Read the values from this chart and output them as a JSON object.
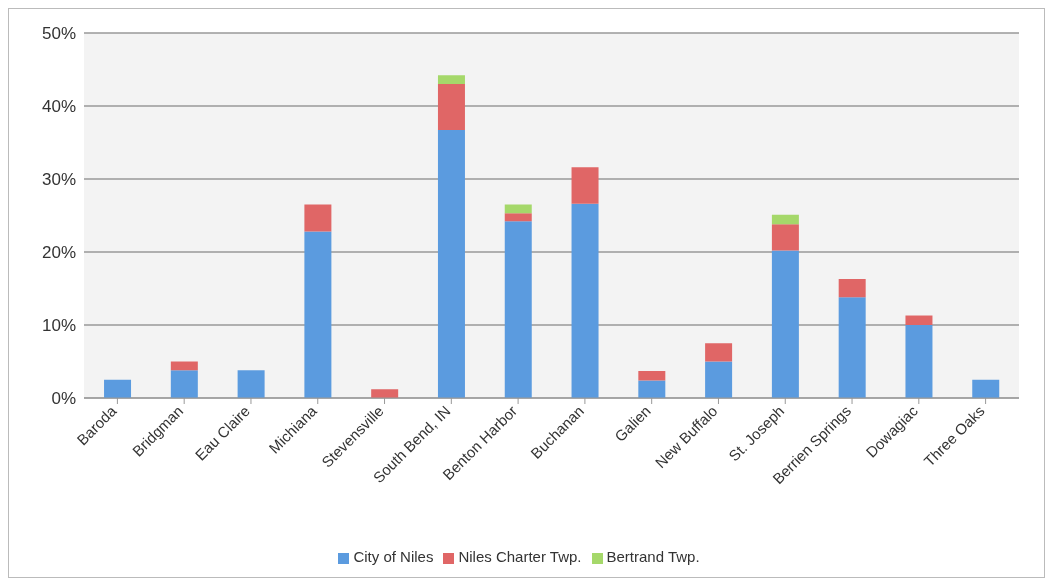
{
  "chart_data": {
    "type": "bar",
    "stacked": true,
    "categories": [
      "Baroda",
      "Bridgman",
      "Eau Claire",
      "Michiana",
      "Stevensville",
      "South Bend, IN",
      "Benton Harbor",
      "Buchanan",
      "Galien",
      "New Buffalo",
      "St. Joseph",
      "Berrien Springs",
      "Dowagiac",
      "Three Oaks"
    ],
    "series": [
      {
        "name": "City of Niles",
        "color": "#5b9bdf",
        "values": [
          2.5,
          3.8,
          3.8,
          22.8,
          0,
          36.7,
          24.2,
          26.6,
          2.4,
          5,
          20.2,
          13.8,
          10,
          2.5
        ]
      },
      {
        "name": "Niles Charter Twp.",
        "color": "#e06666",
        "values": [
          0,
          1.2,
          0,
          3.7,
          1.2,
          6.3,
          1.1,
          5,
          1.3,
          2.5,
          3.6,
          2.5,
          1.3,
          0
        ]
      },
      {
        "name": "Bertrand Twp.",
        "color": "#a5d86a",
        "values": [
          0,
          0,
          0,
          0,
          0,
          1.2,
          1.2,
          0,
          0,
          0,
          1.3,
          0,
          0,
          0
        ]
      }
    ],
    "ylim": [
      0,
      50
    ],
    "yticks": [
      {
        "value": 0,
        "label": "0%"
      },
      {
        "value": 10,
        "label": "10%"
      },
      {
        "value": 20,
        "label": "20%"
      },
      {
        "value": 30,
        "label": "30%"
      },
      {
        "value": 40,
        "label": "40%"
      },
      {
        "value": 50,
        "label": "50%"
      }
    ],
    "grid": "y",
    "legend": "bottom"
  }
}
